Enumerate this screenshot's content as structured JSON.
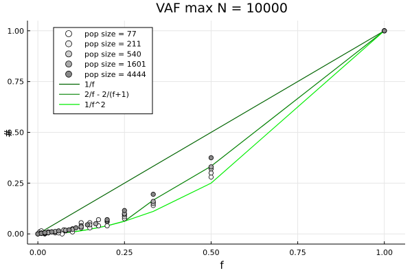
{
  "chart_data": {
    "type": "scatter",
    "title": "VAF max N = 10000",
    "xlabel": "f",
    "ylabel": "#",
    "xlim": [
      -0.03,
      1.06
    ],
    "ylim": [
      -0.05,
      1.05
    ],
    "xticks": [
      0.0,
      0.25,
      0.5,
      0.75,
      1.0
    ],
    "xtick_labels": [
      "0.00",
      "0.25",
      "0.50",
      "0.75",
      "1.00"
    ],
    "yticks": [
      0.0,
      0.25,
      0.5,
      0.75,
      1.0
    ],
    "ytick_labels": [
      "0.00",
      "0.25",
      "0.50",
      "0.75",
      "1.00"
    ],
    "grid": true,
    "legend_position": "top-left",
    "scatter_series": [
      {
        "name": "pop size = 77",
        "color": "#ffffff",
        "points": [
          [
            0.0,
            0.0
          ],
          [
            0.005,
            0.01
          ],
          [
            0.01,
            0.015
          ],
          [
            0.02,
            0.005
          ],
          [
            0.03,
            0.01
          ],
          [
            0.05,
            0.005
          ],
          [
            0.07,
            0.0
          ],
          [
            0.1,
            0.01
          ],
          [
            0.125,
            0.03
          ],
          [
            0.15,
            0.03
          ],
          [
            0.175,
            0.04
          ],
          [
            0.2,
            0.04
          ],
          [
            0.25,
            0.075
          ],
          [
            0.333,
            0.14
          ],
          [
            0.5,
            0.28
          ],
          [
            1.0,
            1.0
          ]
        ]
      },
      {
        "name": "pop size = 211",
        "color": "#eeeeee",
        "points": [
          [
            0.0,
            0.0
          ],
          [
            0.01,
            0.005
          ],
          [
            0.02,
            0.0
          ],
          [
            0.04,
            0.01
          ],
          [
            0.06,
            0.005
          ],
          [
            0.08,
            0.015
          ],
          [
            0.125,
            0.055
          ],
          [
            0.15,
            0.055
          ],
          [
            0.175,
            0.07
          ],
          [
            0.2,
            0.06
          ],
          [
            0.25,
            0.085
          ],
          [
            0.333,
            0.155
          ],
          [
            0.5,
            0.3
          ],
          [
            1.0,
            1.0
          ]
        ]
      },
      {
        "name": "pop size = 540",
        "color": "#cccccc",
        "points": [
          [
            0.0,
            0.0
          ],
          [
            0.01,
            0.003
          ],
          [
            0.02,
            0.003
          ],
          [
            0.03,
            0.005
          ],
          [
            0.05,
            0.01
          ],
          [
            0.075,
            0.02
          ],
          [
            0.1,
            0.025
          ],
          [
            0.125,
            0.04
          ],
          [
            0.15,
            0.045
          ],
          [
            0.2,
            0.07
          ],
          [
            0.25,
            0.095
          ],
          [
            0.333,
            0.15
          ],
          [
            0.5,
            0.32
          ],
          [
            1.0,
            1.0
          ]
        ]
      },
      {
        "name": "pop size = 1601",
        "color": "#aaaaaa",
        "points": [
          [
            0.0,
            0.0
          ],
          [
            0.01,
            0.002
          ],
          [
            0.02,
            0.004
          ],
          [
            0.03,
            0.006
          ],
          [
            0.05,
            0.012
          ],
          [
            0.08,
            0.018
          ],
          [
            0.1,
            0.022
          ],
          [
            0.125,
            0.035
          ],
          [
            0.167,
            0.05
          ],
          [
            0.2,
            0.065
          ],
          [
            0.25,
            0.1
          ],
          [
            0.333,
            0.16
          ],
          [
            0.5,
            0.33
          ],
          [
            1.0,
            1.0
          ]
        ]
      },
      {
        "name": "pop size = 4444",
        "color": "#888888",
        "points": [
          [
            0.0,
            0.0
          ],
          [
            0.01,
            0.003
          ],
          [
            0.02,
            0.006
          ],
          [
            0.04,
            0.01
          ],
          [
            0.06,
            0.015
          ],
          [
            0.09,
            0.02
          ],
          [
            0.11,
            0.03
          ],
          [
            0.143,
            0.045
          ],
          [
            0.2,
            0.07
          ],
          [
            0.25,
            0.115
          ],
          [
            0.333,
            0.195
          ],
          [
            0.5,
            0.375
          ],
          [
            1.0,
            1.0
          ]
        ]
      }
    ],
    "line_series": [
      {
        "name": "1/f",
        "color": "#006400",
        "points": [
          [
            0.0,
            0.0
          ],
          [
            1.0,
            1.0
          ]
        ]
      },
      {
        "name": "2/f - 2/(f+1)",
        "color": "#008000",
        "points": [
          [
            0.0,
            0.0
          ],
          [
            0.0333,
            0.0011
          ],
          [
            0.0714,
            0.0051
          ],
          [
            0.1111,
            0.0123
          ],
          [
            0.1429,
            0.0204
          ],
          [
            0.2,
            0.04
          ],
          [
            0.25,
            0.0625
          ],
          [
            0.3333,
            0.1667
          ],
          [
            0.5,
            0.3333
          ],
          [
            1.0,
            1.0
          ]
        ]
      },
      {
        "name": "1/f^2",
        "color": "#00ee00",
        "points": [
          [
            0.0,
            0.0
          ],
          [
            0.0333,
            0.0011
          ],
          [
            0.0714,
            0.0051
          ],
          [
            0.1111,
            0.0123
          ],
          [
            0.1429,
            0.0204
          ],
          [
            0.2,
            0.04
          ],
          [
            0.25,
            0.0625
          ],
          [
            0.3333,
            0.1111
          ],
          [
            0.5,
            0.25
          ],
          [
            1.0,
            1.0
          ]
        ]
      }
    ]
  }
}
